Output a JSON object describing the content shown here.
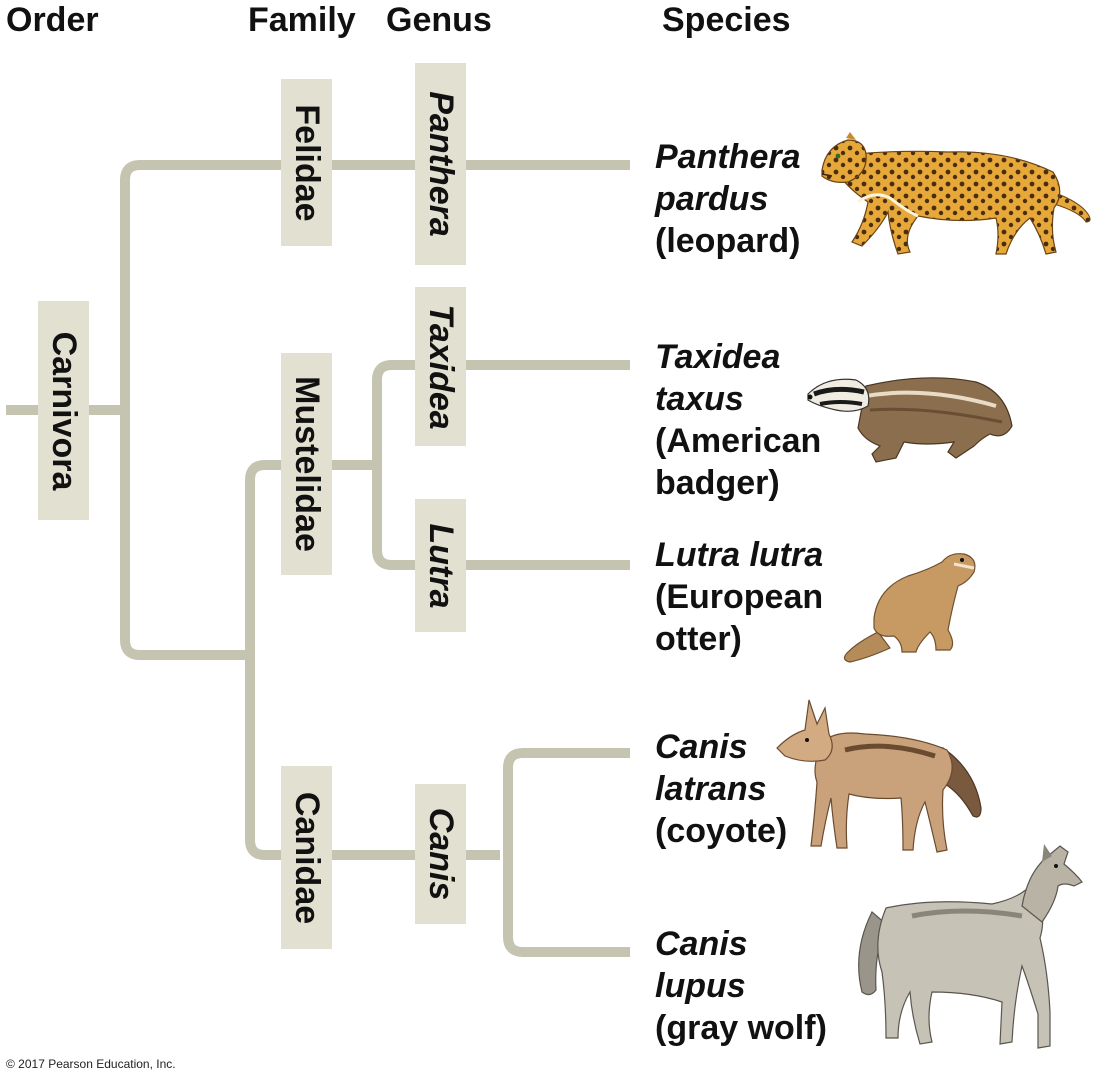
{
  "headers": {
    "order": "Order",
    "family": "Family",
    "genus": "Genus",
    "species": "Species"
  },
  "order_label": "Carnivora",
  "families": {
    "felidae": "Felidae",
    "mustelidae": "Mustelidae",
    "canidae": "Canidae"
  },
  "genera": {
    "panthera": "Panthera",
    "taxidea": "Taxidea",
    "lutra": "Lutra",
    "canis": "Canis"
  },
  "species": [
    {
      "scientific_line1": "Panthera",
      "scientific_line2": "pardus",
      "common_line1": "(leopard)",
      "common_line2": "",
      "icon": "leopard-illustration"
    },
    {
      "scientific_line1": "Taxidea",
      "scientific_line2": "taxus",
      "common_line1": "(American",
      "common_line2": "badger)",
      "icon": "badger-illustration"
    },
    {
      "scientific_line1": "Lutra lutra",
      "scientific_line2": "",
      "common_line1": "(European",
      "common_line2": "otter)",
      "icon": "otter-illustration"
    },
    {
      "scientific_line1": "Canis",
      "scientific_line2": "latrans",
      "common_line1": "(coyote)",
      "common_line2": "",
      "icon": "coyote-illustration"
    },
    {
      "scientific_line1": "Canis",
      "scientific_line2": "lupus",
      "common_line1": "(gray wolf)",
      "common_line2": "",
      "icon": "wolf-illustration"
    }
  ],
  "copyright": "© 2017 Pearson Education, Inc.",
  "colors": {
    "branch": "#c5c4b0",
    "label_box": "#e2e1d1"
  }
}
